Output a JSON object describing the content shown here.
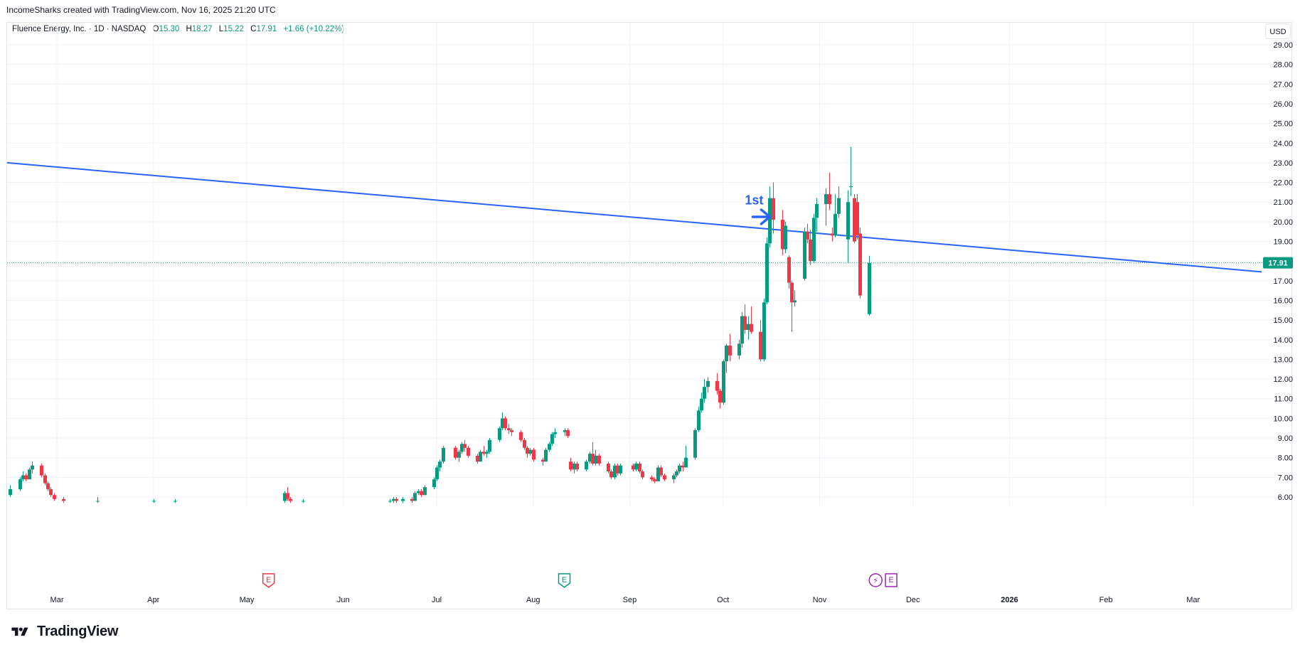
{
  "attribution": "IncomeSharks created with TradingView.com, Nov 16, 2025 21:20 UTC",
  "legend": {
    "title": "Fluence Energy, Inc. · 1D · NASDAQ",
    "o_label": "O",
    "o_value": "15.30",
    "h_label": "H",
    "h_value": "18.27",
    "l_label": "L",
    "l_value": "15.22",
    "c_label": "C",
    "c_value": "17.91",
    "change": "+1.66 (+10.22%)"
  },
  "currency": "USD",
  "brand": "TradingView",
  "colors": {
    "up": "#089981",
    "down": "#f23645",
    "trendline": "#2962ff",
    "price_label_bg": "#089981",
    "earnings": "#f23645",
    "earnings_past": "#089981",
    "dividend": "#9c27b0"
  },
  "chart_data": {
    "type": "candlestick",
    "symbol": "FLNC",
    "interval": "1D",
    "y_axis": {
      "ticks": [
        "6.00",
        "7.00",
        "8.00",
        "9.00",
        "10.00",
        "11.00",
        "12.00",
        "13.00",
        "14.00",
        "15.00",
        "16.00",
        "17.00",
        "18.00",
        "19.00",
        "20.00",
        "21.00",
        "22.00",
        "23.00",
        "24.00",
        "25.00",
        "26.00",
        "27.00",
        "28.00",
        "29.00"
      ],
      "ylim": [
        5.7,
        30.0
      ],
      "scale": "linear",
      "position": "right"
    },
    "x_axis": {
      "ticks": [
        {
          "label": "Mar",
          "date": "2025-03-01"
        },
        {
          "label": "Apr",
          "date": "2025-04-01"
        },
        {
          "label": "May",
          "date": "2025-05-01"
        },
        {
          "label": "Jun",
          "date": "2025-06-01"
        },
        {
          "label": "Jul",
          "date": "2025-07-01"
        },
        {
          "label": "Aug",
          "date": "2025-08-01"
        },
        {
          "label": "Sep",
          "date": "2025-09-01"
        },
        {
          "label": "Oct",
          "date": "2025-10-01"
        },
        {
          "label": "Nov",
          "date": "2025-11-01"
        },
        {
          "label": "Dec",
          "date": "2025-12-01"
        },
        {
          "label": "2026",
          "date": "2026-01-01",
          "bold": true
        },
        {
          "label": "Feb",
          "date": "2026-02-01"
        },
        {
          "label": "Mar",
          "date": "2026-03-01"
        }
      ],
      "xlim": [
        "2025-02-13",
        "2026-03-23"
      ]
    },
    "grid": true,
    "last_price": "17.91",
    "candles": [
      {
        "d": "2025-02-14",
        "o": 6.1,
        "h": 6.6,
        "l": 6.0,
        "c": 6.4
      },
      {
        "d": "2025-02-17",
        "o": 6.4,
        "h": 7.0,
        "l": 6.3,
        "c": 6.9
      },
      {
        "d": "2025-02-18",
        "o": 6.9,
        "h": 7.3,
        "l": 6.8,
        "c": 7.1
      },
      {
        "d": "2025-02-19",
        "o": 7.1,
        "h": 7.2,
        "l": 6.8,
        "c": 6.9
      },
      {
        "d": "2025-02-20",
        "o": 6.9,
        "h": 7.5,
        "l": 6.9,
        "c": 7.4
      },
      {
        "d": "2025-02-21",
        "o": 7.4,
        "h": 7.8,
        "l": 7.2,
        "c": 7.6
      },
      {
        "d": "2025-02-24",
        "o": 7.6,
        "h": 7.7,
        "l": 7.0,
        "c": 7.1
      },
      {
        "d": "2025-02-25",
        "o": 7.1,
        "h": 7.2,
        "l": 6.6,
        "c": 6.7
      },
      {
        "d": "2025-02-26",
        "o": 6.7,
        "h": 6.8,
        "l": 6.3,
        "c": 6.4
      },
      {
        "d": "2025-02-27",
        "o": 6.4,
        "h": 6.5,
        "l": 6.0,
        "c": 6.1
      },
      {
        "d": "2025-02-28",
        "o": 6.1,
        "h": 6.2,
        "l": 5.8,
        "c": 5.9
      },
      {
        "d": "2025-03-03",
        "o": 5.9,
        "h": 6.0,
        "l": 5.7,
        "c": 5.8
      },
      {
        "d": "2025-03-14",
        "o": 5.8,
        "h": 6.0,
        "l": 5.7,
        "c": 5.8
      },
      {
        "d": "2025-04-01",
        "o": 5.8,
        "h": 5.9,
        "l": 5.7,
        "c": 5.8
      },
      {
        "d": "2025-04-08",
        "o": 5.8,
        "h": 5.9,
        "l": 5.7,
        "c": 5.8
      },
      {
        "d": "2025-05-13",
        "o": 5.8,
        "h": 6.3,
        "l": 5.7,
        "c": 6.2
      },
      {
        "d": "2025-05-14",
        "o": 6.2,
        "h": 6.5,
        "l": 5.8,
        "c": 5.9
      },
      {
        "d": "2025-05-15",
        "o": 5.9,
        "h": 6.0,
        "l": 5.7,
        "c": 5.8
      },
      {
        "d": "2025-05-19",
        "o": 5.8,
        "h": 5.9,
        "l": 5.7,
        "c": 5.8
      },
      {
        "d": "2025-06-16",
        "o": 5.8,
        "h": 5.9,
        "l": 5.7,
        "c": 5.8
      },
      {
        "d": "2025-06-17",
        "o": 5.8,
        "h": 6.0,
        "l": 5.7,
        "c": 5.9
      },
      {
        "d": "2025-06-18",
        "o": 5.9,
        "h": 6.0,
        "l": 5.7,
        "c": 5.8
      },
      {
        "d": "2025-06-20",
        "o": 5.8,
        "h": 6.0,
        "l": 5.7,
        "c": 5.9
      },
      {
        "d": "2025-06-23",
        "o": 5.9,
        "h": 6.0,
        "l": 5.7,
        "c": 5.8
      },
      {
        "d": "2025-06-24",
        "o": 5.8,
        "h": 6.3,
        "l": 5.8,
        "c": 6.2
      },
      {
        "d": "2025-06-25",
        "o": 6.2,
        "h": 6.4,
        "l": 6.1,
        "c": 6.3
      },
      {
        "d": "2025-06-26",
        "o": 6.3,
        "h": 6.4,
        "l": 6.0,
        "c": 6.1
      },
      {
        "d": "2025-06-27",
        "o": 6.1,
        "h": 6.6,
        "l": 6.1,
        "c": 6.5
      },
      {
        "d": "2025-06-30",
        "o": 6.5,
        "h": 7.0,
        "l": 6.4,
        "c": 6.9
      },
      {
        "d": "2025-07-01",
        "o": 6.9,
        "h": 7.6,
        "l": 6.8,
        "c": 7.5
      },
      {
        "d": "2025-07-02",
        "o": 7.5,
        "h": 7.9,
        "l": 7.3,
        "c": 7.8
      },
      {
        "d": "2025-07-03",
        "o": 7.8,
        "h": 8.6,
        "l": 7.7,
        "c": 8.5
      },
      {
        "d": "2025-07-07",
        "o": 8.5,
        "h": 8.6,
        "l": 7.9,
        "c": 8.0
      },
      {
        "d": "2025-07-08",
        "o": 8.0,
        "h": 8.4,
        "l": 7.8,
        "c": 8.3
      },
      {
        "d": "2025-07-09",
        "o": 8.3,
        "h": 8.8,
        "l": 8.2,
        "c": 8.7
      },
      {
        "d": "2025-07-10",
        "o": 8.7,
        "h": 8.9,
        "l": 8.3,
        "c": 8.5
      },
      {
        "d": "2025-07-11",
        "o": 8.5,
        "h": 8.6,
        "l": 8.0,
        "c": 8.1
      },
      {
        "d": "2025-07-14",
        "o": 8.1,
        "h": 8.2,
        "l": 7.7,
        "c": 7.8
      },
      {
        "d": "2025-07-15",
        "o": 7.8,
        "h": 8.4,
        "l": 7.8,
        "c": 8.3
      },
      {
        "d": "2025-07-16",
        "o": 8.3,
        "h": 8.6,
        "l": 8.1,
        "c": 8.2
      },
      {
        "d": "2025-07-17",
        "o": 8.2,
        "h": 8.4,
        "l": 8.0,
        "c": 8.3
      },
      {
        "d": "2025-07-18",
        "o": 8.3,
        "h": 9.0,
        "l": 8.2,
        "c": 8.9
      },
      {
        "d": "2025-07-21",
        "o": 8.9,
        "h": 9.6,
        "l": 8.8,
        "c": 9.5
      },
      {
        "d": "2025-07-22",
        "o": 9.5,
        "h": 10.3,
        "l": 9.4,
        "c": 10.0
      },
      {
        "d": "2025-07-23",
        "o": 10.0,
        "h": 10.1,
        "l": 9.4,
        "c": 9.5
      },
      {
        "d": "2025-07-24",
        "o": 9.5,
        "h": 9.7,
        "l": 9.2,
        "c": 9.4
      },
      {
        "d": "2025-07-25",
        "o": 9.4,
        "h": 9.5,
        "l": 9.1,
        "c": 9.3
      },
      {
        "d": "2025-07-28",
        "o": 9.3,
        "h": 9.4,
        "l": 8.8,
        "c": 8.9
      },
      {
        "d": "2025-07-29",
        "o": 8.9,
        "h": 9.0,
        "l": 8.4,
        "c": 8.5
      },
      {
        "d": "2025-07-30",
        "o": 8.5,
        "h": 8.6,
        "l": 8.0,
        "c": 8.2
      },
      {
        "d": "2025-07-31",
        "o": 8.2,
        "h": 8.5,
        "l": 8.1,
        "c": 8.4
      },
      {
        "d": "2025-08-01",
        "o": 8.4,
        "h": 8.5,
        "l": 7.8,
        "c": 7.9
      },
      {
        "d": "2025-08-04",
        "o": 7.9,
        "h": 8.0,
        "l": 7.6,
        "c": 7.8
      },
      {
        "d": "2025-08-05",
        "o": 7.8,
        "h": 8.5,
        "l": 7.8,
        "c": 8.4
      },
      {
        "d": "2025-08-06",
        "o": 8.4,
        "h": 8.8,
        "l": 8.3,
        "c": 8.7
      },
      {
        "d": "2025-08-07",
        "o": 8.7,
        "h": 9.3,
        "l": 8.6,
        "c": 9.2
      },
      {
        "d": "2025-08-08",
        "o": 9.2,
        "h": 9.5,
        "l": 9.0,
        "c": 9.3
      },
      {
        "d": "2025-08-11",
        "o": 9.3,
        "h": 9.5,
        "l": 9.1,
        "c": 9.4
      },
      {
        "d": "2025-08-12",
        "o": 9.4,
        "h": 9.5,
        "l": 9.0,
        "c": 9.1
      },
      {
        "d": "2025-08-13",
        "o": 7.8,
        "h": 8.0,
        "l": 7.3,
        "c": 7.4
      },
      {
        "d": "2025-08-14",
        "o": 7.4,
        "h": 7.8,
        "l": 7.2,
        "c": 7.7
      },
      {
        "d": "2025-08-15",
        "o": 7.7,
        "h": 7.8,
        "l": 7.3,
        "c": 7.4
      },
      {
        "d": "2025-08-18",
        "o": 7.4,
        "h": 7.9,
        "l": 7.3,
        "c": 7.8
      },
      {
        "d": "2025-08-19",
        "o": 7.8,
        "h": 8.3,
        "l": 7.7,
        "c": 8.2
      },
      {
        "d": "2025-08-20",
        "o": 8.2,
        "h": 8.8,
        "l": 7.6,
        "c": 7.7
      },
      {
        "d": "2025-08-21",
        "o": 7.7,
        "h": 8.4,
        "l": 7.6,
        "c": 8.1
      },
      {
        "d": "2025-08-22",
        "o": 8.1,
        "h": 8.2,
        "l": 7.6,
        "c": 7.7
      },
      {
        "d": "2025-08-25",
        "o": 7.7,
        "h": 7.8,
        "l": 7.2,
        "c": 7.3
      },
      {
        "d": "2025-08-26",
        "o": 7.3,
        "h": 7.4,
        "l": 6.9,
        "c": 7.0
      },
      {
        "d": "2025-08-27",
        "o": 7.0,
        "h": 7.7,
        "l": 6.9,
        "c": 7.6
      },
      {
        "d": "2025-08-28",
        "o": 7.6,
        "h": 7.7,
        "l": 7.1,
        "c": 7.2
      },
      {
        "d": "2025-08-29",
        "o": 7.2,
        "h": 7.7,
        "l": 7.1,
        "c": 7.6
      },
      {
        "d": "2025-09-02",
        "o": 7.6,
        "h": 7.7,
        "l": 7.3,
        "c": 7.4
      },
      {
        "d": "2025-09-03",
        "o": 7.4,
        "h": 7.8,
        "l": 7.3,
        "c": 7.7
      },
      {
        "d": "2025-09-04",
        "o": 7.7,
        "h": 7.8,
        "l": 7.2,
        "c": 7.3
      },
      {
        "d": "2025-09-05",
        "o": 7.3,
        "h": 7.4,
        "l": 6.9,
        "c": 7.0
      },
      {
        "d": "2025-09-08",
        "o": 7.0,
        "h": 7.1,
        "l": 6.8,
        "c": 6.9
      },
      {
        "d": "2025-09-09",
        "o": 6.9,
        "h": 7.0,
        "l": 6.7,
        "c": 6.8
      },
      {
        "d": "2025-09-10",
        "o": 6.8,
        "h": 7.6,
        "l": 6.8,
        "c": 7.5
      },
      {
        "d": "2025-09-11",
        "o": 7.5,
        "h": 7.6,
        "l": 7.0,
        "c": 7.1
      },
      {
        "d": "2025-09-12",
        "o": 7.1,
        "h": 7.2,
        "l": 6.8,
        "c": 6.9
      },
      {
        "d": "2025-09-15",
        "o": 6.9,
        "h": 7.2,
        "l": 6.7,
        "c": 7.1
      },
      {
        "d": "2025-09-16",
        "o": 7.1,
        "h": 7.4,
        "l": 7.0,
        "c": 7.3
      },
      {
        "d": "2025-09-17",
        "o": 7.3,
        "h": 7.7,
        "l": 7.2,
        "c": 7.6
      },
      {
        "d": "2025-09-18",
        "o": 7.6,
        "h": 7.8,
        "l": 7.3,
        "c": 7.5
      },
      {
        "d": "2025-09-19",
        "o": 7.5,
        "h": 8.6,
        "l": 7.5,
        "c": 8.0
      },
      {
        "d": "2025-09-22",
        "o": 8.0,
        "h": 9.5,
        "l": 7.9,
        "c": 9.4
      },
      {
        "d": "2025-09-23",
        "o": 9.4,
        "h": 10.6,
        "l": 9.3,
        "c": 10.4
      },
      {
        "d": "2025-09-24",
        "o": 10.4,
        "h": 11.3,
        "l": 10.3,
        "c": 11.0
      },
      {
        "d": "2025-09-25",
        "o": 11.0,
        "h": 12.0,
        "l": 10.8,
        "c": 11.6
      },
      {
        "d": "2025-09-26",
        "o": 11.6,
        "h": 12.1,
        "l": 11.3,
        "c": 11.9
      },
      {
        "d": "2025-09-29",
        "o": 11.9,
        "h": 12.3,
        "l": 11.2,
        "c": 11.4
      },
      {
        "d": "2025-09-30",
        "o": 11.4,
        "h": 11.5,
        "l": 10.5,
        "c": 10.8
      },
      {
        "d": "2025-10-01",
        "o": 10.8,
        "h": 13.0,
        "l": 10.7,
        "c": 12.9
      },
      {
        "d": "2025-10-02",
        "o": 12.9,
        "h": 13.8,
        "l": 12.3,
        "c": 13.7
      },
      {
        "d": "2025-10-03",
        "o": 13.7,
        "h": 14.3,
        "l": 12.9,
        "c": 13.2
      },
      {
        "d": "2025-10-06",
        "o": 13.2,
        "h": 14.0,
        "l": 13.0,
        "c": 13.8
      },
      {
        "d": "2025-10-07",
        "o": 13.8,
        "h": 15.4,
        "l": 13.6,
        "c": 15.2
      },
      {
        "d": "2025-10-08",
        "o": 15.2,
        "h": 15.8,
        "l": 14.3,
        "c": 14.5
      },
      {
        "d": "2025-10-09",
        "o": 14.5,
        "h": 15.2,
        "l": 14.0,
        "c": 14.8
      },
      {
        "d": "2025-10-10",
        "o": 14.8,
        "h": 15.7,
        "l": 14.3,
        "c": 14.4
      },
      {
        "d": "2025-10-13",
        "o": 14.4,
        "h": 15.0,
        "l": 12.9,
        "c": 13.0
      },
      {
        "d": "2025-10-14",
        "o": 13.0,
        "h": 16.1,
        "l": 12.9,
        "c": 15.9
      },
      {
        "d": "2025-10-15",
        "o": 15.9,
        "h": 19.2,
        "l": 15.8,
        "c": 18.9
      },
      {
        "d": "2025-10-16",
        "o": 18.9,
        "h": 21.8,
        "l": 18.7,
        "c": 21.2
      },
      {
        "d": "2025-10-17",
        "o": 21.2,
        "h": 22.0,
        "l": 19.4,
        "c": 20.1
      },
      {
        "d": "2025-10-20",
        "o": 20.1,
        "h": 20.6,
        "l": 18.3,
        "c": 18.6
      },
      {
        "d": "2025-10-21",
        "o": 18.6,
        "h": 20.0,
        "l": 18.4,
        "c": 19.8
      },
      {
        "d": "2025-10-22",
        "o": 18.2,
        "h": 18.3,
        "l": 16.6,
        "c": 16.9
      },
      {
        "d": "2025-10-23",
        "o": 16.9,
        "h": 17.0,
        "l": 14.4,
        "c": 15.9
      },
      {
        "d": "2025-10-24",
        "o": 15.9,
        "h": 16.5,
        "l": 15.7,
        "c": 16.0
      },
      {
        "d": "2025-10-27",
        "o": 17.1,
        "h": 19.7,
        "l": 17.0,
        "c": 19.5
      },
      {
        "d": "2025-10-28",
        "o": 19.5,
        "h": 19.9,
        "l": 18.9,
        "c": 19.1
      },
      {
        "d": "2025-10-29",
        "o": 19.1,
        "h": 19.6,
        "l": 17.8,
        "c": 18.0
      },
      {
        "d": "2025-10-30",
        "o": 18.0,
        "h": 20.4,
        "l": 17.9,
        "c": 20.2
      },
      {
        "d": "2025-10-31",
        "o": 20.2,
        "h": 21.2,
        "l": 19.5,
        "c": 20.9
      },
      {
        "d": "2025-11-03",
        "o": 20.9,
        "h": 21.7,
        "l": 19.8,
        "c": 21.4
      },
      {
        "d": "2025-11-04",
        "o": 21.4,
        "h": 22.5,
        "l": 20.6,
        "c": 20.9
      },
      {
        "d": "2025-11-05",
        "o": 19.4,
        "h": 19.7,
        "l": 19.0,
        "c": 19.3
      },
      {
        "d": "2025-11-06",
        "o": 19.3,
        "h": 21.4,
        "l": 19.2,
        "c": 20.4
      },
      {
        "d": "2025-11-07",
        "o": 20.4,
        "h": 21.8,
        "l": 20.2,
        "c": 21.2
      },
      {
        "d": "2025-11-10",
        "o": 19.1,
        "h": 21.6,
        "l": 17.9,
        "c": 21.0
      },
      {
        "d": "2025-11-11",
        "o": 21.8,
        "h": 23.8,
        "l": 21.3,
        "c": 21.8
      },
      {
        "d": "2025-11-12",
        "o": 21.2,
        "h": 21.4,
        "l": 18.9,
        "c": 19.0
      },
      {
        "d": "2025-11-13",
        "o": 21.0,
        "h": 21.4,
        "l": 19.1,
        "c": 19.3
      },
      {
        "d": "2025-11-14",
        "o": 19.4,
        "h": 19.7,
        "l": 16.1,
        "c": 16.25
      },
      {
        "d": "2025-11-17",
        "o": 15.3,
        "h": 18.27,
        "l": 15.22,
        "c": 17.91
      }
    ],
    "trendline": {
      "from": {
        "d": "2025-02-13",
        "v": 23.0
      },
      "to": {
        "d": "2026-03-23",
        "v": 17.45
      }
    },
    "annotations": [
      {
        "text": "1st",
        "d": "2025-10-08",
        "v": 21.1
      },
      {
        "type": "arrow",
        "d": "2025-10-16",
        "v": 20.25
      }
    ],
    "events": [
      {
        "type": "earnings",
        "label": "E",
        "d": "2025-05-08",
        "state": "past-red"
      },
      {
        "type": "earnings",
        "label": "E",
        "d": "2025-08-11",
        "state": "past-green"
      },
      {
        "type": "dividend",
        "label": "⚡",
        "d": "2025-11-19",
        "state": "upcoming"
      },
      {
        "type": "earnings",
        "label": "E",
        "d": "2025-11-24",
        "state": "upcoming"
      }
    ]
  }
}
